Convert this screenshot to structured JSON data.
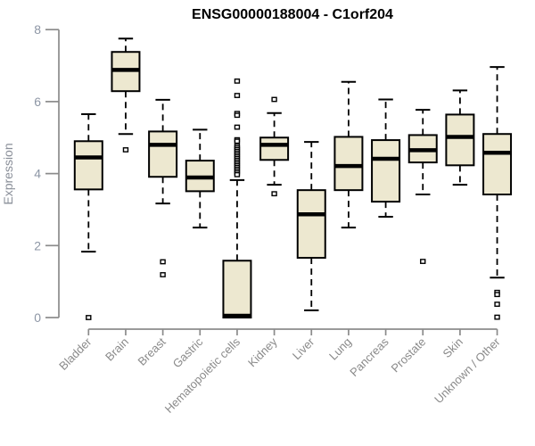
{
  "chart_data": {
    "type": "boxplot",
    "title": "ENSG00000188004 - C1orf204",
    "ylabel": "Expression",
    "xlabel": "",
    "ylim": [
      0,
      8
    ],
    "yticks": [
      0,
      2,
      4,
      6,
      8
    ],
    "grid": false,
    "legend": "none",
    "categories": [
      "Bladder",
      "Brain",
      "Breast",
      "Gastric",
      "Hematopoietic cells",
      "Kidney",
      "Liver",
      "Lung",
      "Pancreas",
      "Prostate",
      "Skin",
      "Unknown / Other"
    ],
    "series": [
      {
        "name": "Bladder",
        "low": 1.83,
        "q1": 3.56,
        "median": 4.45,
        "q3": 4.9,
        "high": 5.65,
        "outliers": [
          0.0
        ]
      },
      {
        "name": "Brain",
        "low": 5.1,
        "q1": 6.29,
        "median": 6.88,
        "q3": 7.38,
        "high": 7.75,
        "outliers": [
          4.66
        ]
      },
      {
        "name": "Breast",
        "low": 3.17,
        "q1": 3.91,
        "median": 4.8,
        "q3": 5.17,
        "high": 6.05,
        "outliers": [
          1.55,
          1.19
        ]
      },
      {
        "name": "Gastric",
        "low": 2.5,
        "q1": 3.51,
        "median": 3.89,
        "q3": 4.36,
        "high": 5.22,
        "outliers": []
      },
      {
        "name": "Hematopoietic cells",
        "low": 0.0,
        "q1": 0.0,
        "median": 0.05,
        "q3": 1.58,
        "high": 3.82,
        "outliers": [
          6.57,
          6.17,
          5.67,
          5.62,
          5.29,
          4.94,
          4.9,
          4.77,
          4.72,
          4.67,
          4.62,
          4.57,
          4.52,
          4.47,
          4.42,
          4.37,
          4.32,
          4.27,
          4.22,
          4.17,
          4.12,
          4.07,
          4.02,
          3.97
        ]
      },
      {
        "name": "Kidney",
        "low": 3.69,
        "q1": 4.38,
        "median": 4.8,
        "q3": 5.0,
        "high": 5.68,
        "outliers": [
          6.06,
          3.44
        ]
      },
      {
        "name": "Liver",
        "low": 0.2,
        "q1": 1.66,
        "median": 2.87,
        "q3": 3.54,
        "high": 4.88,
        "outliers": []
      },
      {
        "name": "Lung",
        "low": 2.5,
        "q1": 3.54,
        "median": 4.21,
        "q3": 5.02,
        "high": 6.55,
        "outliers": []
      },
      {
        "name": "Pancreas",
        "low": 2.8,
        "q1": 3.22,
        "median": 4.41,
        "q3": 4.93,
        "high": 6.06,
        "outliers": []
      },
      {
        "name": "Prostate",
        "low": 3.42,
        "q1": 4.31,
        "median": 4.65,
        "q3": 5.07,
        "high": 5.77,
        "outliers": [
          1.56
        ]
      },
      {
        "name": "Skin",
        "low": 3.69,
        "q1": 4.23,
        "median": 5.02,
        "q3": 5.64,
        "high": 6.31,
        "outliers": []
      },
      {
        "name": "Unknown / Other",
        "low": 1.11,
        "q1": 3.42,
        "median": 4.58,
        "q3": 5.1,
        "high": 6.96,
        "outliers": [
          0.7,
          0.64,
          0.37,
          0.01
        ]
      }
    ],
    "colors": {
      "box_fill": "#EDE8D0",
      "box_stroke": "#000000",
      "median": "#000000",
      "whisker": "#000000",
      "outlier_fill": "#ffffff",
      "outlier_stroke": "#000000",
      "axis": "#8b8b8b",
      "ytick_label": "#8d96a5",
      "category_label": "#8a8a8a",
      "title": "#000000",
      "background": "#ffffff"
    }
  }
}
